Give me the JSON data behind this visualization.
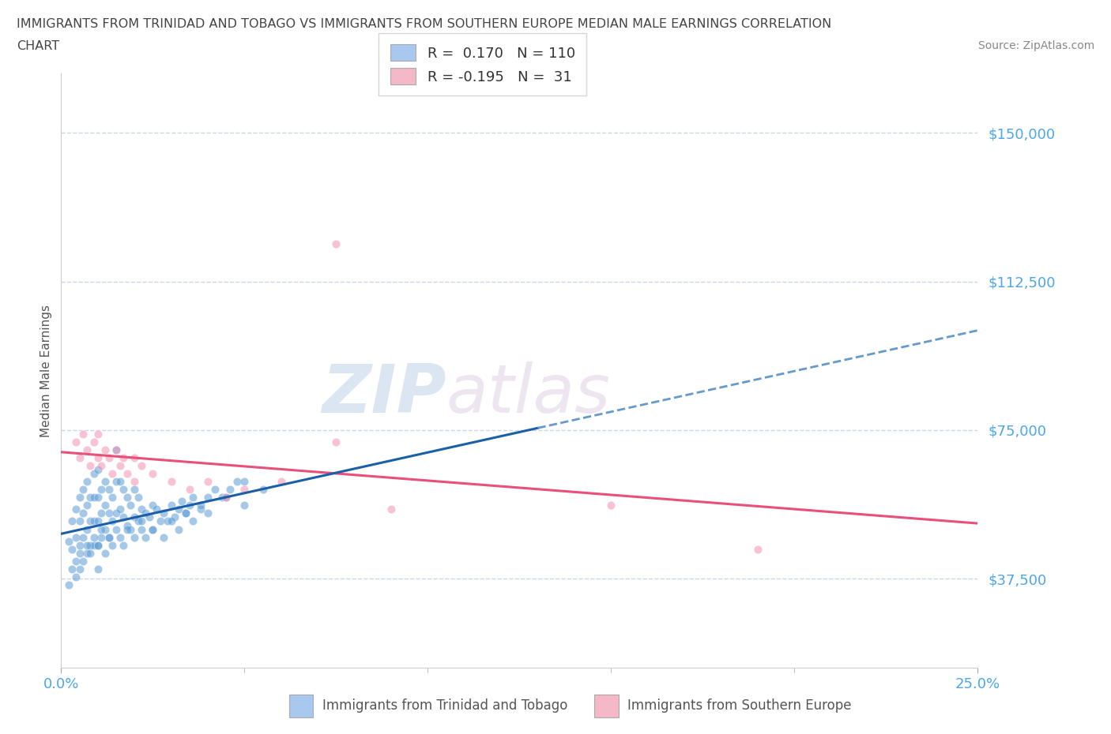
{
  "title_line1": "IMMIGRANTS FROM TRINIDAD AND TOBAGO VS IMMIGRANTS FROM SOUTHERN EUROPE MEDIAN MALE EARNINGS CORRELATION",
  "title_line2": "CHART",
  "source": "Source: ZipAtlas.com",
  "ylabel": "Median Male Earnings",
  "xtick_labels": [
    "0.0%",
    "25.0%"
  ],
  "xtick_values": [
    0.0,
    0.25
  ],
  "ytick_labels": [
    "$37,500",
    "$75,000",
    "$112,500",
    "$150,000"
  ],
  "ytick_values": [
    37500,
    75000,
    112500,
    150000
  ],
  "legend1_label": "R =  0.170   N = 110",
  "legend2_label": "R = -0.195   N =  31",
  "legend1_color": "#a8c8f0",
  "legend2_color": "#f4b8c8",
  "series1_color": "#5b9bd5",
  "series2_color": "#f48fb1",
  "trendline1_solid_color": "#1a5fa8",
  "trendline1_dash_color": "#6699cc",
  "trendline2_color": "#e8507a",
  "grid_color": "#c8d8e8",
  "grid_style": "--",
  "background_color": "#ffffff",
  "xlim": [
    0.0,
    0.25
  ],
  "ylim": [
    15000,
    165000
  ],
  "watermark_zip": "ZIP",
  "watermark_atlas": "atlas",
  "title_color": "#444444",
  "ytick_color": "#4da6e8",
  "xtick_color": "#4da6e8",
  "legend_label_color": "#333333",
  "bottom_legend1": "Immigrants from Trinidad and Tobago",
  "bottom_legend2": "Immigrants from Southern Europe",
  "series1_x": [
    0.002,
    0.003,
    0.003,
    0.004,
    0.004,
    0.004,
    0.005,
    0.005,
    0.005,
    0.005,
    0.006,
    0.006,
    0.006,
    0.007,
    0.007,
    0.007,
    0.007,
    0.008,
    0.008,
    0.008,
    0.009,
    0.009,
    0.009,
    0.009,
    0.01,
    0.01,
    0.01,
    0.01,
    0.01,
    0.011,
    0.011,
    0.011,
    0.012,
    0.012,
    0.012,
    0.013,
    0.013,
    0.013,
    0.014,
    0.014,
    0.015,
    0.015,
    0.015,
    0.016,
    0.016,
    0.017,
    0.017,
    0.018,
    0.018,
    0.019,
    0.019,
    0.02,
    0.02,
    0.021,
    0.021,
    0.022,
    0.022,
    0.023,
    0.023,
    0.024,
    0.025,
    0.025,
    0.026,
    0.027,
    0.028,
    0.029,
    0.03,
    0.031,
    0.032,
    0.033,
    0.034,
    0.035,
    0.036,
    0.038,
    0.04,
    0.042,
    0.044,
    0.046,
    0.048,
    0.05,
    0.002,
    0.003,
    0.004,
    0.005,
    0.006,
    0.007,
    0.008,
    0.009,
    0.01,
    0.011,
    0.012,
    0.013,
    0.014,
    0.015,
    0.016,
    0.017,
    0.018,
    0.02,
    0.022,
    0.025,
    0.028,
    0.03,
    0.032,
    0.034,
    0.036,
    0.038,
    0.04,
    0.045,
    0.05,
    0.055
  ],
  "series1_y": [
    47000,
    52000,
    45000,
    55000,
    48000,
    42000,
    58000,
    52000,
    46000,
    40000,
    60000,
    54000,
    48000,
    62000,
    56000,
    50000,
    44000,
    58000,
    52000,
    46000,
    64000,
    58000,
    52000,
    46000,
    65000,
    58000,
    52000,
    46000,
    40000,
    60000,
    54000,
    48000,
    62000,
    56000,
    50000,
    60000,
    54000,
    48000,
    58000,
    52000,
    70000,
    62000,
    54000,
    62000,
    55000,
    60000,
    53000,
    58000,
    51000,
    56000,
    50000,
    60000,
    53000,
    58000,
    52000,
    55000,
    50000,
    54000,
    48000,
    53000,
    56000,
    50000,
    55000,
    52000,
    54000,
    52000,
    56000,
    53000,
    55000,
    57000,
    54000,
    56000,
    58000,
    55000,
    58000,
    60000,
    58000,
    60000,
    62000,
    62000,
    36000,
    40000,
    38000,
    44000,
    42000,
    46000,
    44000,
    48000,
    46000,
    50000,
    44000,
    48000,
    46000,
    50000,
    48000,
    46000,
    50000,
    48000,
    52000,
    50000,
    48000,
    52000,
    50000,
    54000,
    52000,
    56000,
    54000,
    58000,
    56000,
    60000
  ],
  "series2_x": [
    0.004,
    0.005,
    0.006,
    0.007,
    0.008,
    0.009,
    0.01,
    0.01,
    0.011,
    0.012,
    0.013,
    0.014,
    0.015,
    0.016,
    0.017,
    0.018,
    0.02,
    0.02,
    0.022,
    0.025,
    0.03,
    0.035,
    0.04,
    0.045,
    0.05,
    0.06,
    0.075,
    0.09,
    0.15,
    0.19,
    0.075
  ],
  "series2_y": [
    72000,
    68000,
    74000,
    70000,
    66000,
    72000,
    68000,
    74000,
    66000,
    70000,
    68000,
    64000,
    70000,
    66000,
    68000,
    64000,
    68000,
    62000,
    66000,
    64000,
    62000,
    60000,
    62000,
    58000,
    60000,
    62000,
    72000,
    55000,
    56000,
    45000,
    122000
  ]
}
